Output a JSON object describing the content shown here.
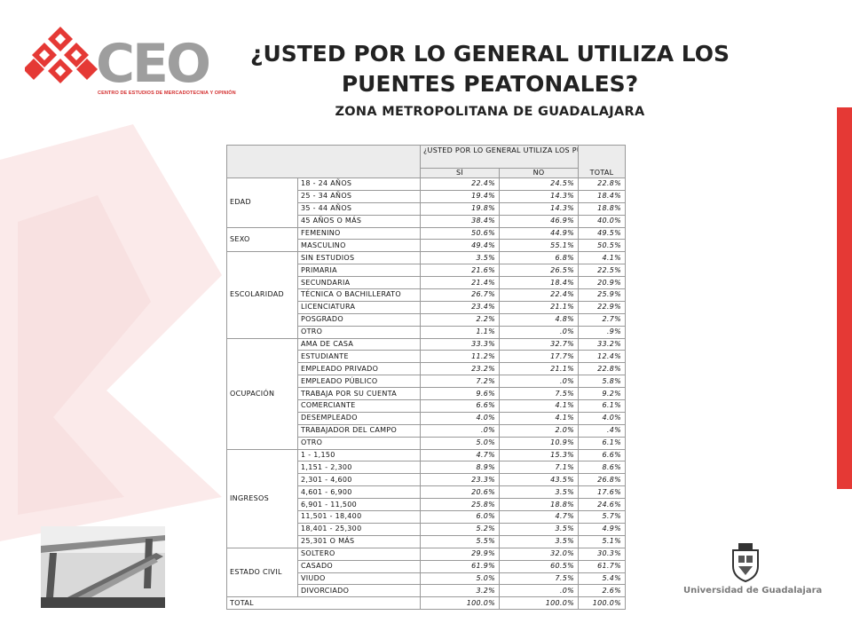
{
  "header": {
    "title": "¿USTED POR LO GENERAL UTILIZA LOS PUENTES PEATONALES?",
    "subtitle": "ZONA METROPOLITANA DE GUADALAJARA"
  },
  "logo": {
    "word": "CEO",
    "subtitle": "CENTRO DE ESTUDIOS DE MERCADOTECNIA Y OPINIÓN",
    "accent": "#e53935"
  },
  "table": {
    "question": "¿USTED POR LO GENERAL UTILIZA LOS PUENTES PEATONALES?",
    "col_yes": "SÍ",
    "col_no": "NO",
    "col_total": "TOTAL",
    "groups": [
      {
        "label": "EDAD",
        "rows": [
          [
            "18 - 24 AÑOS",
            "22.4%",
            "24.5%",
            "22.8%"
          ],
          [
            "25 - 34 AÑOS",
            "19.4%",
            "14.3%",
            "18.4%"
          ],
          [
            "35 - 44 AÑOS",
            "19.8%",
            "14.3%",
            "18.8%"
          ],
          [
            "45 AÑOS O MÁS",
            "38.4%",
            "46.9%",
            "40.0%"
          ]
        ]
      },
      {
        "label": "SEXO",
        "rows": [
          [
            "FEMENINO",
            "50.6%",
            "44.9%",
            "49.5%"
          ],
          [
            "MASCULINO",
            "49.4%",
            "55.1%",
            "50.5%"
          ]
        ]
      },
      {
        "label": "ESCOLARIDAD",
        "rows": [
          [
            "SIN ESTUDIOS",
            "3.5%",
            "6.8%",
            "4.1%"
          ],
          [
            "PRIMARIA",
            "21.6%",
            "26.5%",
            "22.5%"
          ],
          [
            "SECUNDARIA",
            "21.4%",
            "18.4%",
            "20.9%"
          ],
          [
            "TÉCNICA O BACHILLERATO",
            "26.7%",
            "22.4%",
            "25.9%"
          ],
          [
            "LICENCIATURA",
            "23.4%",
            "21.1%",
            "22.9%"
          ],
          [
            "POSGRADO",
            "2.2%",
            "4.8%",
            "2.7%"
          ],
          [
            "OTRO",
            "1.1%",
            ".0%",
            ".9%"
          ]
        ]
      },
      {
        "label": "OCUPACIÓN",
        "rows": [
          [
            "AMA DE CASA",
            "33.3%",
            "32.7%",
            "33.2%"
          ],
          [
            "ESTUDIANTE",
            "11.2%",
            "17.7%",
            "12.4%"
          ],
          [
            "EMPLEADO PRIVADO",
            "23.2%",
            "21.1%",
            "22.8%"
          ],
          [
            "EMPLEADO PÚBLICO",
            "7.2%",
            ".0%",
            "5.8%"
          ],
          [
            "TRABAJA POR SU CUENTA",
            "9.6%",
            "7.5%",
            "9.2%"
          ],
          [
            "COMERCIANTE",
            "6.6%",
            "4.1%",
            "6.1%"
          ],
          [
            "DESEMPLEADO",
            "4.0%",
            "4.1%",
            "4.0%"
          ],
          [
            "TRABAJADOR DEL CAMPO",
            ".0%",
            "2.0%",
            ".4%"
          ],
          [
            "OTRO",
            "5.0%",
            "10.9%",
            "6.1%"
          ]
        ]
      },
      {
        "label": "INGRESOS",
        "rows": [
          [
            "1 - 1,150",
            "4.7%",
            "15.3%",
            "6.6%"
          ],
          [
            "1,151 - 2,300",
            "8.9%",
            "7.1%",
            "8.6%"
          ],
          [
            "2,301 - 4,600",
            "23.3%",
            "43.5%",
            "26.8%"
          ],
          [
            "4,601 - 6,900",
            "20.6%",
            "3.5%",
            "17.6%"
          ],
          [
            "6,901 - 11,500",
            "25.8%",
            "18.8%",
            "24.6%"
          ],
          [
            "11,501 - 18,400",
            "6.0%",
            "4.7%",
            "5.7%"
          ],
          [
            "18,401 - 25,300",
            "5.2%",
            "3.5%",
            "4.9%"
          ],
          [
            "25,301 O MÁS",
            "5.5%",
            "3.5%",
            "5.1%"
          ]
        ]
      },
      {
        "label": "ESTADO CIVIL",
        "rows": [
          [
            "SOLTERO",
            "29.9%",
            "32.0%",
            "30.3%"
          ],
          [
            "CASADO",
            "61.9%",
            "60.5%",
            "61.7%"
          ],
          [
            "VIUDO",
            "5.0%",
            "7.5%",
            "5.4%"
          ],
          [
            "DIVORCIADO",
            "3.2%",
            ".0%",
            "2.6%"
          ]
        ]
      }
    ],
    "total": [
      "TOTAL",
      "100.0%",
      "100.0%",
      "100.0%"
    ]
  },
  "footer": {
    "university": "Universidad de Guadalajara"
  }
}
